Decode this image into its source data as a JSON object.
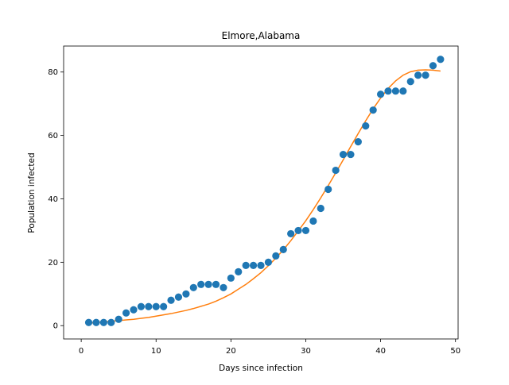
{
  "chart_data": {
    "type": "scatter",
    "title": "Elmore,Alabama",
    "xlabel": "Days since infection",
    "ylabel": "Population infected",
    "xlim": [
      -2.35,
      50.35
    ],
    "ylim": [
      -4.2,
      88.2
    ],
    "xticks": [
      0,
      10,
      20,
      30,
      40,
      50
    ],
    "yticks": [
      0,
      20,
      40,
      60,
      80
    ],
    "grid": false,
    "legend": "none",
    "colors": {
      "points": "#1f77b4",
      "fit": "#ff7f0e"
    },
    "series": [
      {
        "kind": "scatter",
        "x": [
          1,
          2,
          3,
          4,
          5,
          6,
          7,
          8,
          9,
          10,
          11,
          12,
          13,
          14,
          15,
          16,
          17,
          18,
          19,
          20,
          21,
          22,
          23,
          24,
          25,
          26,
          27,
          28,
          29,
          30,
          31,
          32,
          33,
          34,
          35,
          36,
          37,
          38,
          39,
          40,
          41,
          42,
          43,
          44,
          45,
          46,
          47,
          48
        ],
        "y": [
          1,
          1,
          1,
          1,
          2,
          4,
          5,
          6,
          6,
          6,
          6,
          8,
          9,
          10,
          12,
          13,
          13,
          13,
          12,
          15,
          17,
          19,
          19,
          19,
          20,
          22,
          24,
          29,
          30,
          30,
          33,
          37,
          43,
          49,
          54,
          54,
          58,
          63,
          68,
          73,
          74,
          74,
          74,
          77,
          79,
          79,
          82,
          84
        ]
      },
      {
        "kind": "line",
        "x": [
          1,
          2,
          3,
          4,
          5,
          6,
          7,
          8,
          9,
          10,
          11,
          12,
          13,
          14,
          15,
          16,
          17,
          18,
          19,
          20,
          21,
          22,
          23,
          24,
          25,
          26,
          27,
          28,
          29,
          30,
          31,
          32,
          33,
          34,
          35,
          36,
          37,
          38,
          39,
          40,
          41,
          42,
          43,
          44,
          45,
          46,
          47,
          48
        ],
        "y": [
          0.8,
          1.0,
          1.2,
          1.4,
          1.6,
          1.8,
          2.0,
          2.3,
          2.6,
          3.0,
          3.4,
          3.8,
          4.3,
          4.8,
          5.4,
          6.1,
          6.8,
          7.7,
          8.8,
          10.0,
          11.5,
          13.0,
          14.8,
          16.7,
          18.9,
          21.3,
          23.9,
          26.8,
          29.9,
          33.1,
          36.6,
          40.3,
          44.2,
          48.2,
          52.3,
          56.5,
          60.6,
          64.6,
          68.4,
          71.8,
          74.8,
          77.2,
          79.0,
          80.1,
          80.6,
          80.7,
          80.6,
          80.3
        ]
      }
    ]
  }
}
